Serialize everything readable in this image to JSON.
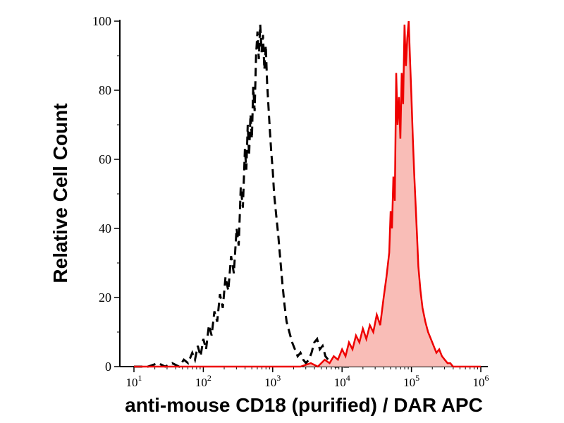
{
  "figure": {
    "background": "#ffffff"
  },
  "chart_data": {
    "type": "line",
    "chart_kind": "flow-cytometry-overlay-histogram",
    "xlabel": "anti-mouse CD18 (purified) / DAR APC",
    "ylabel": "Relative Cell Count",
    "x_scale": "log10",
    "xlim_log10": [
      1,
      6
    ],
    "ylim": [
      0,
      100
    ],
    "grid": false,
    "legend": "none",
    "axis_color": "#000000",
    "y_major_ticks": [
      0,
      20,
      40,
      60,
      80,
      100
    ],
    "y_minor_ticks": [
      10,
      30,
      50,
      70,
      90
    ],
    "x_major_ticks": [
      {
        "base": "10",
        "exponent": "1"
      },
      {
        "base": "10",
        "exponent": "2"
      },
      {
        "base": "10",
        "exponent": "3"
      },
      {
        "base": "10",
        "exponent": "4"
      },
      {
        "base": "10",
        "exponent": "5"
      },
      {
        "base": "10",
        "exponent": "6"
      }
    ],
    "series": [
      {
        "name": "negative-control-dashed-open",
        "color": "#000000",
        "style": "dashed",
        "fill": "none",
        "points_log10x_y": [
          [
            1.0,
            0
          ],
          [
            1.2,
            0
          ],
          [
            1.35,
            1
          ],
          [
            1.45,
            0
          ],
          [
            1.55,
            1
          ],
          [
            1.65,
            0
          ],
          [
            1.72,
            2
          ],
          [
            1.78,
            1
          ],
          [
            1.84,
            4
          ],
          [
            1.88,
            2
          ],
          [
            1.92,
            6
          ],
          [
            1.96,
            3
          ],
          [
            2.0,
            8
          ],
          [
            2.04,
            5
          ],
          [
            2.08,
            12
          ],
          [
            2.12,
            9
          ],
          [
            2.16,
            16
          ],
          [
            2.2,
            13
          ],
          [
            2.24,
            21
          ],
          [
            2.28,
            17
          ],
          [
            2.32,
            26
          ],
          [
            2.36,
            22
          ],
          [
            2.4,
            32
          ],
          [
            2.44,
            27
          ],
          [
            2.48,
            40
          ],
          [
            2.51,
            35
          ],
          [
            2.54,
            52
          ],
          [
            2.57,
            46
          ],
          [
            2.6,
            63
          ],
          [
            2.62,
            57
          ],
          [
            2.64,
            70
          ],
          [
            2.66,
            61
          ],
          [
            2.68,
            73
          ],
          [
            2.7,
            66
          ],
          [
            2.72,
            81
          ],
          [
            2.74,
            74
          ],
          [
            2.76,
            90
          ],
          [
            2.78,
            97
          ],
          [
            2.8,
            89
          ],
          [
            2.82,
            99
          ],
          [
            2.84,
            91
          ],
          [
            2.86,
            96
          ],
          [
            2.88,
            86
          ],
          [
            2.9,
            93
          ],
          [
            2.92,
            82
          ],
          [
            2.94,
            75
          ],
          [
            2.96,
            68
          ],
          [
            2.98,
            62
          ],
          [
            3.0,
            57
          ],
          [
            3.02,
            50
          ],
          [
            3.05,
            44
          ],
          [
            3.08,
            38
          ],
          [
            3.11,
            31
          ],
          [
            3.14,
            24
          ],
          [
            3.17,
            18
          ],
          [
            3.2,
            13
          ],
          [
            3.24,
            10
          ],
          [
            3.28,
            7
          ],
          [
            3.32,
            5
          ],
          [
            3.36,
            3
          ],
          [
            3.4,
            4
          ],
          [
            3.44,
            2
          ],
          [
            3.48,
            1
          ],
          [
            3.52,
            2
          ],
          [
            3.56,
            4
          ],
          [
            3.6,
            7
          ],
          [
            3.64,
            8
          ],
          [
            3.68,
            5
          ],
          [
            3.72,
            6
          ],
          [
            3.76,
            3
          ],
          [
            3.8,
            2
          ],
          [
            3.85,
            1
          ],
          [
            3.9,
            0
          ],
          [
            4.0,
            0
          ],
          [
            4.1,
            0
          ]
        ]
      },
      {
        "name": "stained-red-filled",
        "color": "#ee0000",
        "style": "solid",
        "fill": "#f9bdb7",
        "points_log10x_y": [
          [
            1.0,
            0
          ],
          [
            3.4,
            0
          ],
          [
            3.55,
            1
          ],
          [
            3.65,
            0
          ],
          [
            3.75,
            2
          ],
          [
            3.82,
            1
          ],
          [
            3.88,
            3
          ],
          [
            3.94,
            2
          ],
          [
            4.0,
            5
          ],
          [
            4.05,
            3
          ],
          [
            4.1,
            7
          ],
          [
            4.15,
            5
          ],
          [
            4.2,
            9
          ],
          [
            4.25,
            7
          ],
          [
            4.3,
            11
          ],
          [
            4.35,
            8
          ],
          [
            4.4,
            12
          ],
          [
            4.45,
            10
          ],
          [
            4.5,
            15
          ],
          [
            4.55,
            12
          ],
          [
            4.6,
            20
          ],
          [
            4.64,
            26
          ],
          [
            4.68,
            33
          ],
          [
            4.7,
            45
          ],
          [
            4.72,
            40
          ],
          [
            4.74,
            55
          ],
          [
            4.76,
            48
          ],
          [
            4.78,
            85
          ],
          [
            4.8,
            70
          ],
          [
            4.82,
            78
          ],
          [
            4.84,
            66
          ],
          [
            4.86,
            85
          ],
          [
            4.88,
            76
          ],
          [
            4.9,
            99
          ],
          [
            4.92,
            87
          ],
          [
            4.94,
            95
          ],
          [
            4.96,
            100
          ],
          [
            4.98,
            89
          ],
          [
            5.0,
            78
          ],
          [
            5.02,
            66
          ],
          [
            5.04,
            56
          ],
          [
            5.06,
            47
          ],
          [
            5.08,
            38
          ],
          [
            5.1,
            29
          ],
          [
            5.13,
            22
          ],
          [
            5.16,
            17
          ],
          [
            5.2,
            13
          ],
          [
            5.24,
            10
          ],
          [
            5.28,
            8
          ],
          [
            5.32,
            6
          ],
          [
            5.36,
            4
          ],
          [
            5.4,
            5
          ],
          [
            5.44,
            3
          ],
          [
            5.48,
            2
          ],
          [
            5.52,
            1
          ],
          [
            5.56,
            1
          ],
          [
            5.6,
            0
          ],
          [
            6.0,
            0
          ]
        ]
      }
    ]
  }
}
